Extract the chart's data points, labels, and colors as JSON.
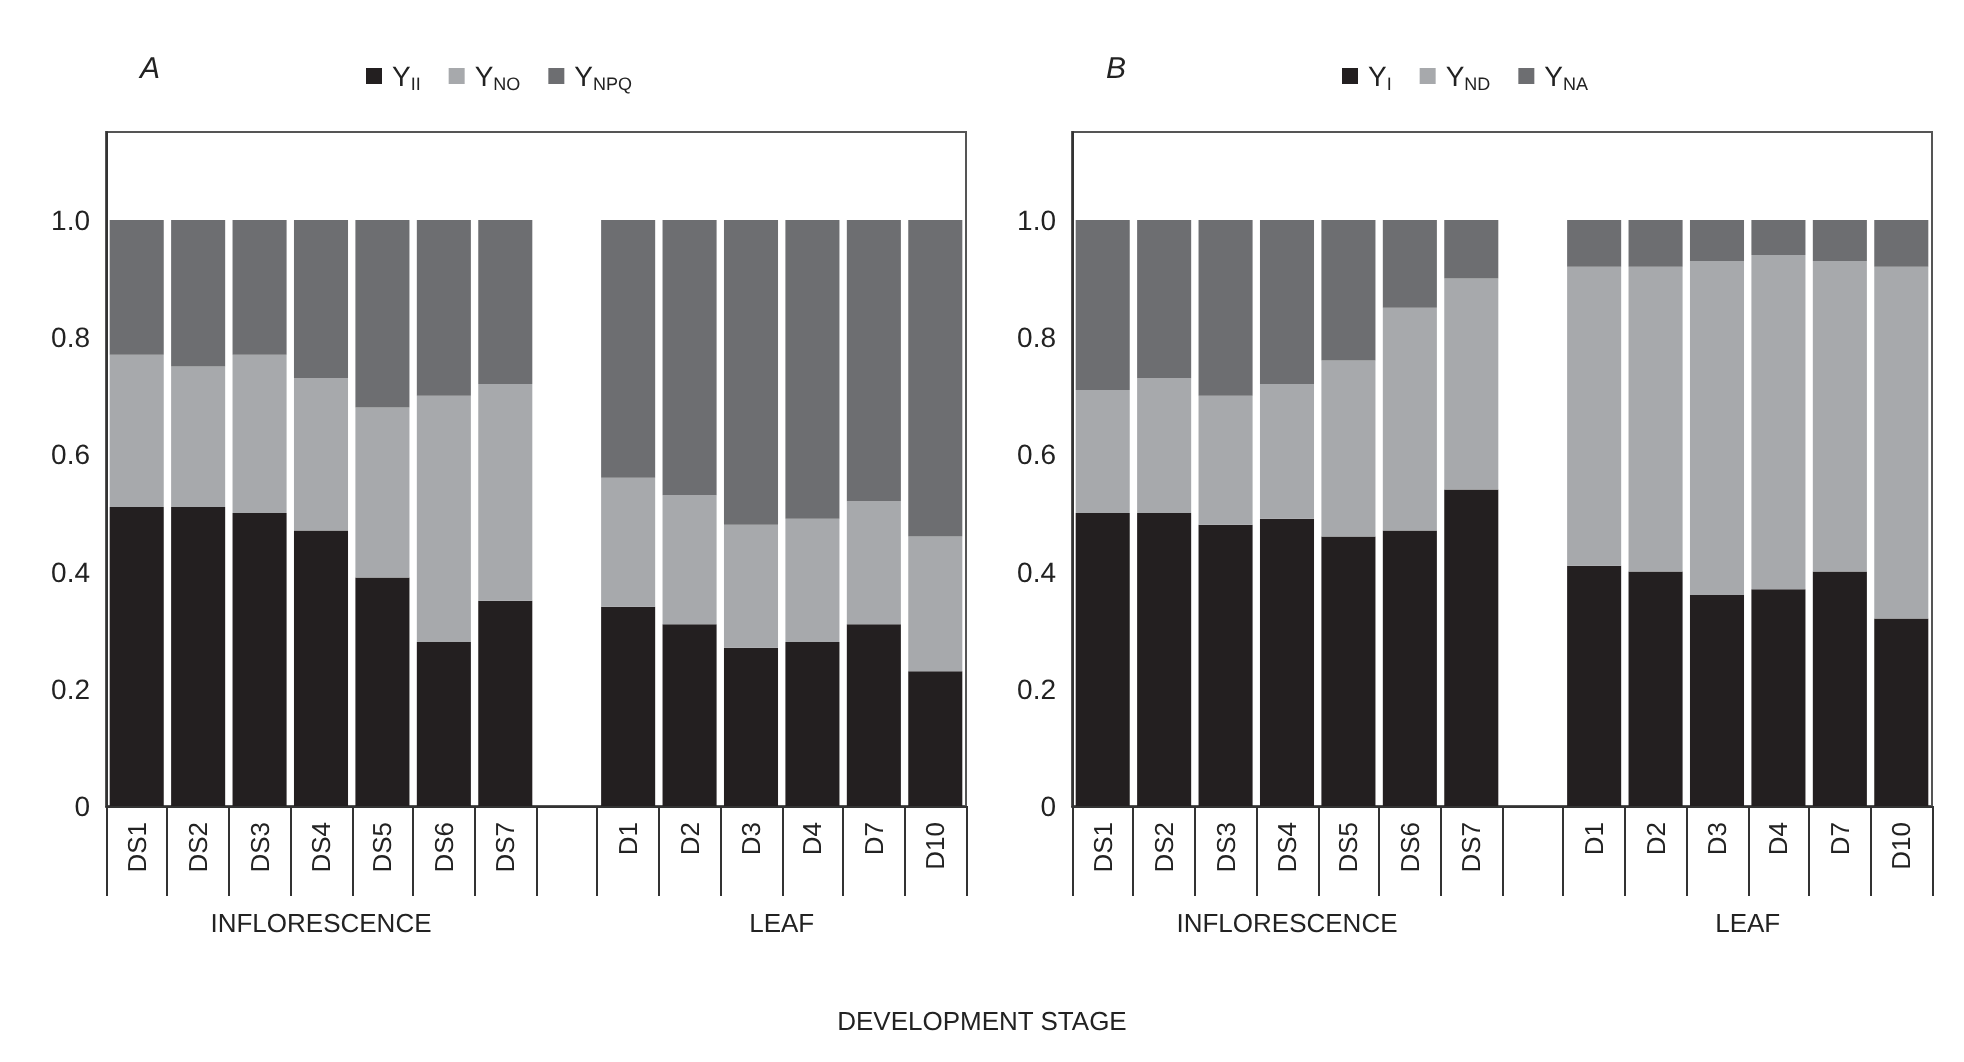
{
  "chart_data": [
    {
      "type": "bar",
      "stacked": true,
      "title": "A",
      "xlabel": "DEVELOPMENT STAGE",
      "categories": [
        "DS1",
        "DS2",
        "DS3",
        "DS4",
        "DS5",
        "DS6",
        "DS7",
        null,
        "D1",
        "D2",
        "D3",
        "D4",
        "D7",
        "D10"
      ],
      "series": [
        {
          "name": "Y$_{II}$",
          "color": "#231f20",
          "values": [
            0.51,
            0.51,
            0.5,
            0.47,
            0.39,
            0.28,
            0.35,
            null,
            0.34,
            0.31,
            0.27,
            0.28,
            0.31,
            0.23
          ]
        },
        {
          "name": "Y$_{NO}$",
          "color": "#a7a9ac",
          "values": [
            0.26,
            0.24,
            0.27,
            0.26,
            0.29,
            0.42,
            0.37,
            null,
            0.22,
            0.22,
            0.21,
            0.21,
            0.21,
            0.23
          ]
        },
        {
          "name": "Y$_{NPQ}$",
          "color": "#6d6e71",
          "values": [
            0.23,
            0.25,
            0.23,
            0.27,
            0.32,
            0.3,
            0.28,
            null,
            0.44,
            0.47,
            0.52,
            0.51,
            0.48,
            0.54
          ]
        }
      ],
      "ylim": [
        0,
        1.15
      ],
      "yticks": [
        0,
        0.2,
        0.4,
        0.6,
        0.8,
        {
          "value": 1,
          "label": "1.0"
        }
      ],
      "grid": false,
      "legend": "top",
      "annotations": [
        "INFLORESCENCE",
        "LEAF"
      ]
    },
    {
      "type": "bar",
      "stacked": true,
      "title": "B",
      "categories": [
        "DS1",
        "DS2",
        "DS3",
        "DS4",
        "DS5",
        "DS6",
        "DS7",
        null,
        "D1",
        "D2",
        "D3",
        "D4",
        "D7",
        "D10"
      ],
      "series": [
        {
          "name": "Y$_{I}$",
          "color": "#231f20",
          "values": [
            0.5,
            0.5,
            0.48,
            0.49,
            0.46,
            0.47,
            0.54,
            null,
            0.41,
            0.4,
            0.36,
            0.37,
            0.4,
            0.32
          ]
        },
        {
          "name": "Y$_{ND}$",
          "color": "#a7a9ac",
          "values": [
            0.21,
            0.23,
            0.22,
            0.23,
            0.3,
            0.38,
            0.36,
            null,
            0.51,
            0.52,
            0.57,
            0.57,
            0.53,
            0.6
          ]
        },
        {
          "name": "Y$_{NA}$",
          "color": "#6d6e71",
          "values": [
            0.29,
            0.27,
            0.3,
            0.28,
            0.24,
            0.15,
            0.1,
            null,
            0.08,
            0.08,
            0.07,
            0.06,
            0.07,
            0.08
          ]
        }
      ],
      "ylim": [
        0,
        1.15
      ],
      "yticks": [
        0,
        0.2,
        0.4,
        0.6,
        0.8,
        {
          "value": 1,
          "label": "1.0"
        }
      ],
      "grid": false,
      "legend": "top",
      "annotations": [
        "INFLORESCENCE",
        "LEAF"
      ]
    }
  ]
}
